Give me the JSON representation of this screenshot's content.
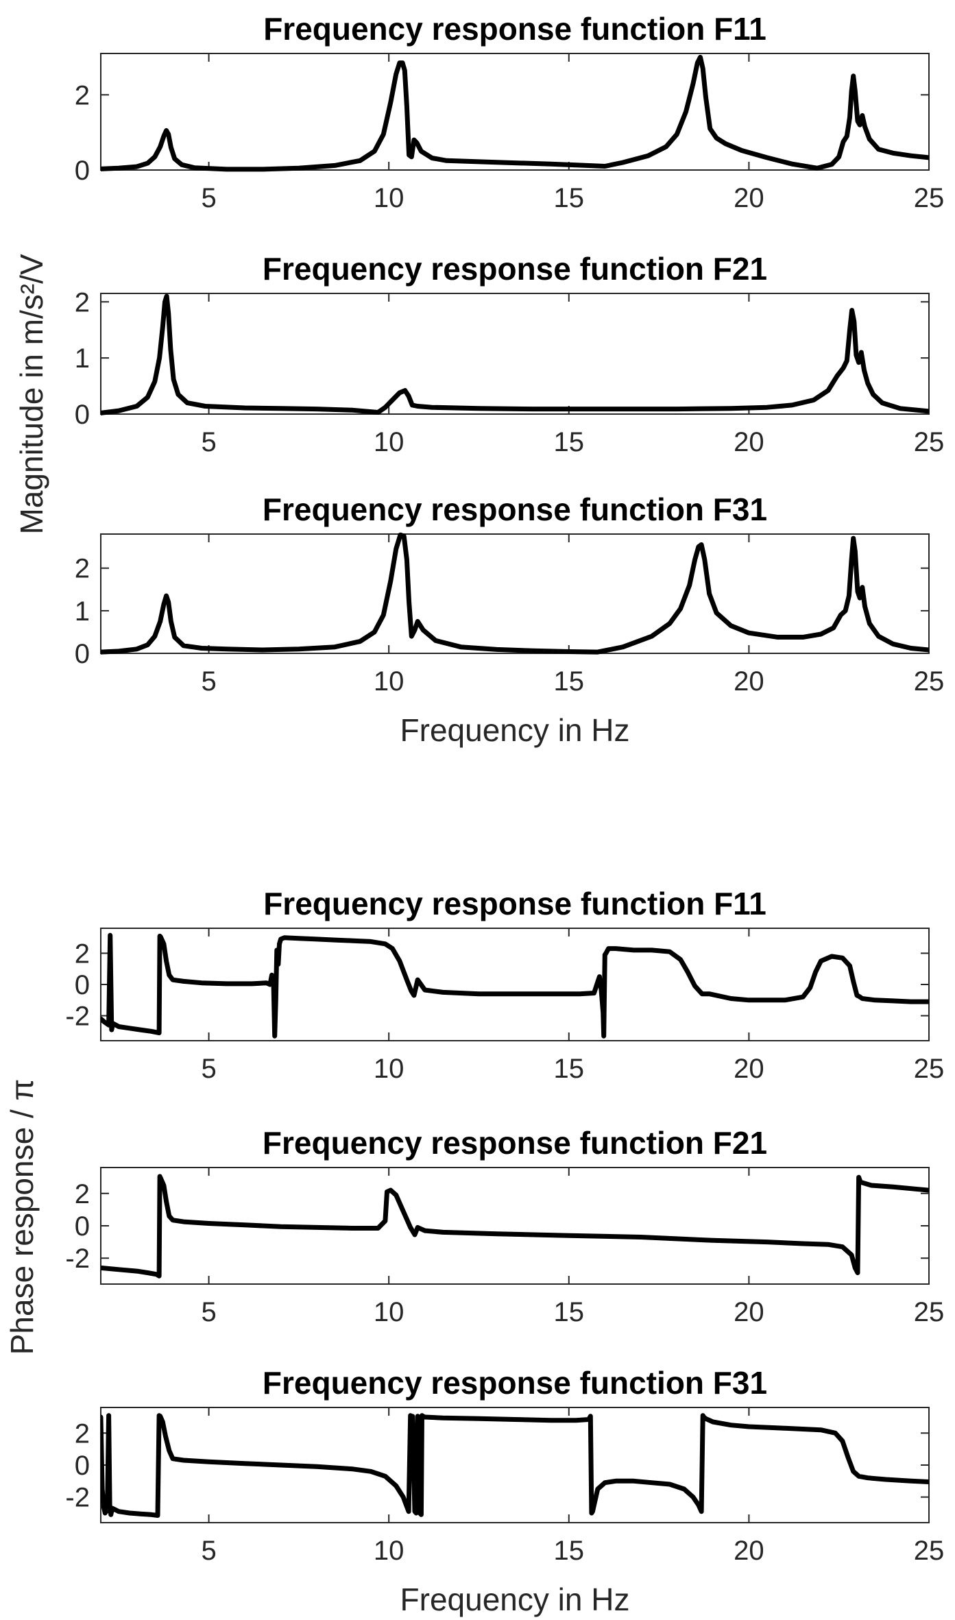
{
  "figure": {
    "magnitude_ylabel": "Magnitude in m/s²/V",
    "phase_ylabel": "Phase response / π",
    "xlabel": "Frequency in Hz"
  },
  "chart_data": [
    {
      "type": "line",
      "title": "Frequency response function F11",
      "xlabel": "",
      "ylabel": "Magnitude in m/s²/V",
      "xlim": [
        2,
        25
      ],
      "ylim": [
        0,
        3.1
      ],
      "xticks": [
        5,
        10,
        15,
        20,
        25
      ],
      "yticks": [
        0,
        2
      ],
      "x": [
        2,
        2.5,
        3,
        3.3,
        3.5,
        3.65,
        3.75,
        3.82,
        3.88,
        3.95,
        4.05,
        4.25,
        4.6,
        5.5,
        6.5,
        7.5,
        8.5,
        9.2,
        9.6,
        9.85,
        10.05,
        10.2,
        10.3,
        10.38,
        10.44,
        10.5,
        10.56,
        10.63,
        10.7,
        10.78,
        10.9,
        11.2,
        11.6,
        12.5,
        13.5,
        14.5,
        15.5,
        16,
        16.5,
        17.2,
        17.7,
        18,
        18.25,
        18.45,
        18.57,
        18.65,
        18.72,
        18.8,
        18.92,
        19.1,
        19.35,
        19.8,
        20.5,
        21.2,
        21.9,
        22.3,
        22.5,
        22.62,
        22.72,
        22.8,
        22.85,
        22.9,
        22.95,
        23.02,
        23.08,
        23.15,
        23.22,
        23.35,
        23.6,
        24,
        24.5,
        25
      ],
      "y": [
        0.03,
        0.05,
        0.09,
        0.18,
        0.35,
        0.62,
        0.9,
        1.05,
        0.95,
        0.6,
        0.3,
        0.14,
        0.06,
        0.02,
        0.02,
        0.05,
        0.12,
        0.25,
        0.5,
        0.95,
        1.8,
        2.55,
        2.85,
        2.85,
        2.65,
        1.7,
        0.4,
        0.35,
        0.8,
        0.72,
        0.5,
        0.32,
        0.25,
        0.22,
        0.19,
        0.16,
        0.12,
        0.1,
        0.2,
        0.38,
        0.62,
        0.95,
        1.55,
        2.3,
        2.85,
        3.0,
        2.7,
        1.95,
        1.1,
        0.85,
        0.7,
        0.52,
        0.33,
        0.16,
        0.05,
        0.15,
        0.35,
        0.75,
        0.9,
        1.4,
        2.1,
        2.5,
        2.1,
        1.3,
        1.2,
        1.45,
        1.15,
        0.82,
        0.55,
        0.45,
        0.38,
        0.33
      ]
    },
    {
      "type": "line",
      "title": "Frequency response function F21",
      "xlabel": "",
      "ylabel": "Magnitude in m/s²/V",
      "xlim": [
        2,
        25
      ],
      "ylim": [
        0,
        2.15
      ],
      "xticks": [
        5,
        10,
        15,
        20,
        25
      ],
      "yticks": [
        0,
        1,
        2
      ],
      "x": [
        2,
        2.5,
        3,
        3.3,
        3.5,
        3.63,
        3.72,
        3.78,
        3.83,
        3.88,
        3.94,
        4.02,
        4.15,
        4.4,
        4.9,
        6,
        7,
        8,
        9,
        9.7,
        9.9,
        10.1,
        10.3,
        10.45,
        10.55,
        10.65,
        10.8,
        11.2,
        12.5,
        14,
        16,
        18,
        19.5,
        20.5,
        21.2,
        21.8,
        22.2,
        22.45,
        22.62,
        22.72,
        22.8,
        22.86,
        22.92,
        22.98,
        23.05,
        23.12,
        23.2,
        23.3,
        23.45,
        23.7,
        24.2,
        25
      ],
      "y": [
        0.02,
        0.06,
        0.14,
        0.3,
        0.58,
        1.0,
        1.55,
        2.0,
        2.1,
        1.8,
        1.15,
        0.62,
        0.35,
        0.2,
        0.14,
        0.11,
        0.1,
        0.09,
        0.07,
        0.03,
        0.12,
        0.25,
        0.38,
        0.42,
        0.32,
        0.16,
        0.14,
        0.12,
        0.1,
        0.09,
        0.09,
        0.09,
        0.1,
        0.12,
        0.16,
        0.25,
        0.42,
        0.68,
        0.82,
        0.95,
        1.5,
        1.85,
        1.65,
        1.05,
        0.92,
        1.1,
        0.78,
        0.55,
        0.35,
        0.2,
        0.1,
        0.05
      ]
    },
    {
      "type": "line",
      "title": "Frequency response function F31",
      "xlabel": "Frequency in Hz",
      "ylabel": "Magnitude in m/s²/V",
      "xlim": [
        2,
        25
      ],
      "ylim": [
        0,
        2.8
      ],
      "xticks": [
        5,
        10,
        15,
        20,
        25
      ],
      "yticks": [
        0,
        1,
        2
      ],
      "x": [
        2,
        2.5,
        3,
        3.3,
        3.5,
        3.65,
        3.75,
        3.82,
        3.88,
        3.95,
        4.05,
        4.3,
        4.8,
        5.5,
        6.5,
        7.5,
        8.5,
        9.2,
        9.6,
        9.85,
        10.05,
        10.2,
        10.32,
        10.42,
        10.5,
        10.56,
        10.63,
        10.72,
        10.8,
        10.95,
        11.3,
        12,
        13,
        14,
        15,
        15.8,
        16.5,
        17.3,
        17.8,
        18.1,
        18.35,
        18.5,
        18.6,
        18.68,
        18.77,
        18.9,
        19.1,
        19.5,
        20,
        20.8,
        21.5,
        22,
        22.35,
        22.55,
        22.68,
        22.78,
        22.85,
        22.9,
        22.95,
        23.02,
        23.08,
        23.15,
        23.22,
        23.35,
        23.6,
        24,
        24.5,
        25
      ],
      "y": [
        0.03,
        0.05,
        0.1,
        0.2,
        0.4,
        0.75,
        1.15,
        1.35,
        1.2,
        0.75,
        0.38,
        0.18,
        0.12,
        0.1,
        0.08,
        0.1,
        0.15,
        0.28,
        0.5,
        0.9,
        1.7,
        2.45,
        2.78,
        2.75,
        2.2,
        1.2,
        0.4,
        0.55,
        0.75,
        0.55,
        0.3,
        0.15,
        0.09,
        0.06,
        0.04,
        0.03,
        0.15,
        0.4,
        0.7,
        1.05,
        1.6,
        2.2,
        2.5,
        2.55,
        2.2,
        1.4,
        0.95,
        0.65,
        0.48,
        0.38,
        0.38,
        0.45,
        0.6,
        0.9,
        1.0,
        1.35,
        2.2,
        2.7,
        2.4,
        1.45,
        1.3,
        1.55,
        1.1,
        0.7,
        0.4,
        0.22,
        0.12,
        0.08
      ]
    },
    {
      "type": "line",
      "title": "Frequency response function F11",
      "xlabel": "",
      "ylabel": "Phase response / π",
      "xlim": [
        2,
        25
      ],
      "ylim": [
        -3.6,
        3.6
      ],
      "xticks": [
        5,
        10,
        15,
        20,
        25
      ],
      "yticks": [
        -2,
        0,
        2
      ],
      "x": [
        2,
        2.1,
        2.22,
        2.26,
        2.3,
        2.34,
        2.5,
        2.8,
        3.1,
        3.4,
        3.62,
        3.64,
        3.66,
        3.75,
        3.82,
        3.9,
        4,
        4.3,
        4.8,
        5.5,
        6.2,
        6.6,
        6.7,
        6.75,
        6.8,
        6.83,
        6.86,
        6.89,
        6.93,
        6.96,
        7,
        7.1,
        7.5,
        8,
        8.5,
        9,
        9.5,
        9.9,
        10.1,
        10.3,
        10.5,
        10.62,
        10.7,
        10.8,
        11,
        11.5,
        12.5,
        13.5,
        14.5,
        15.3,
        15.7,
        15.85,
        15.9,
        15.95,
        15.97,
        16,
        16.03,
        16.1,
        16.3,
        16.8,
        17.3,
        17.8,
        18.1,
        18.3,
        18.5,
        18.7,
        18.9,
        19.5,
        20,
        20.5,
        21,
        21.5,
        21.7,
        21.85,
        22,
        22.3,
        22.6,
        22.8,
        22.9,
        23,
        23.05,
        23.15,
        23.5,
        24,
        24.5,
        25
      ],
      "y": [
        -2.2,
        -2.4,
        -2.6,
        3.15,
        -2.9,
        -2.5,
        -2.7,
        -2.8,
        -2.9,
        -3.0,
        -3.1,
        3.1,
        3.05,
        2.6,
        1.5,
        0.6,
        0.3,
        0.2,
        0.1,
        0.05,
        0.05,
        0.1,
        0.0,
        0.6,
        -0.1,
        -3.3,
        -1.0,
        2.2,
        1.3,
        2.6,
        2.9,
        3.0,
        2.95,
        2.9,
        2.85,
        2.8,
        2.75,
        2.6,
        2.3,
        1.5,
        0.3,
        -0.4,
        -0.7,
        0.3,
        -0.35,
        -0.5,
        -0.6,
        -0.6,
        -0.6,
        -0.6,
        -0.55,
        0.5,
        -0.4,
        -1.8,
        -3.3,
        1.9,
        2.0,
        2.3,
        2.3,
        2.2,
        2.2,
        2.1,
        1.6,
        0.8,
        -0.1,
        -0.6,
        -0.6,
        -0.9,
        -1.0,
        -1.0,
        -1.0,
        -0.8,
        -0.2,
        0.8,
        1.5,
        1.8,
        1.7,
        1.2,
        0.2,
        -0.7,
        -0.75,
        -0.9,
        -1.0,
        -1.05,
        -1.1,
        -1.1
      ]
    },
    {
      "type": "line",
      "title": "Frequency response function F21",
      "xlabel": "",
      "ylabel": "Phase response / π",
      "xlim": [
        2,
        25
      ],
      "ylim": [
        -3.6,
        3.6
      ],
      "xticks": [
        5,
        10,
        15,
        20,
        25
      ],
      "yticks": [
        -2,
        0,
        2
      ],
      "x": [
        2,
        2.5,
        3,
        3.3,
        3.55,
        3.62,
        3.64,
        3.67,
        3.75,
        3.82,
        3.9,
        4,
        4.3,
        5,
        6,
        7,
        8,
        9,
        9.7,
        9.9,
        9.95,
        10.05,
        10.2,
        10.4,
        10.6,
        10.72,
        10.8,
        11,
        11.5,
        13,
        15,
        17,
        19,
        20.5,
        21.5,
        22.2,
        22.6,
        22.85,
        22.95,
        23.02,
        23.05,
        23.1,
        23.4,
        24,
        24.5,
        25
      ],
      "y": [
        -2.6,
        -2.7,
        -2.8,
        -2.9,
        -3.0,
        -3.1,
        3.05,
        2.9,
        2.5,
        1.5,
        0.6,
        0.35,
        0.25,
        0.15,
        0.05,
        -0.05,
        -0.1,
        -0.15,
        -0.15,
        0.3,
        2.1,
        2.2,
        1.9,
        0.9,
        -0.1,
        -0.55,
        -0.1,
        -0.3,
        -0.4,
        -0.5,
        -0.6,
        -0.7,
        -0.9,
        -1.0,
        -1.1,
        -1.15,
        -1.3,
        -1.8,
        -2.6,
        -2.9,
        3.0,
        2.7,
        2.5,
        2.4,
        2.3,
        2.2
      ]
    },
    {
      "type": "line",
      "title": "Frequency response function F31",
      "xlabel": "Frequency in Hz",
      "ylabel": "Phase response / π",
      "xlim": [
        2,
        25
      ],
      "ylim": [
        -3.6,
        3.6
      ],
      "xticks": [
        5,
        10,
        15,
        20,
        25
      ],
      "yticks": [
        -2,
        0,
        2
      ],
      "x": [
        2,
        2.04,
        2.08,
        2.12,
        2.18,
        2.22,
        2.25,
        2.28,
        2.32,
        2.5,
        2.8,
        3.1,
        3.4,
        3.58,
        3.62,
        3.65,
        3.72,
        3.8,
        3.9,
        4,
        4.3,
        5,
        6,
        7,
        8,
        9,
        9.5,
        9.9,
        10.2,
        10.4,
        10.5,
        10.55,
        10.6,
        10.63,
        10.66,
        10.72,
        10.76,
        10.8,
        10.83,
        10.86,
        10.9,
        10.92,
        10.95,
        11,
        11.5,
        12.5,
        13.5,
        14.5,
        15.2,
        15.55,
        15.6,
        15.63,
        15.66,
        15.7,
        15.8,
        16,
        16.3,
        16.8,
        17.3,
        17.8,
        18.2,
        18.45,
        18.6,
        18.68,
        18.72,
        18.75,
        18.8,
        19,
        19.5,
        20,
        21,
        22,
        22.4,
        22.6,
        22.75,
        22.9,
        23.05,
        23.3,
        23.8,
        24.5,
        25
      ],
      "y": [
        3.0,
        -1.5,
        -2.6,
        -3.0,
        -2.8,
        3.1,
        -2.5,
        -3.1,
        -2.7,
        -2.9,
        -3.0,
        -3.05,
        -3.1,
        -3.15,
        3.1,
        3.05,
        2.7,
        1.8,
        0.9,
        0.4,
        0.3,
        0.2,
        0.1,
        0.0,
        -0.1,
        -0.25,
        -0.4,
        -0.7,
        -1.3,
        -2.0,
        -2.6,
        -2.9,
        3.1,
        3.0,
        3.05,
        -2.9,
        -3.0,
        3.05,
        3.0,
        -3.0,
        -3.1,
        3.1,
        3.05,
        3.0,
        2.95,
        2.9,
        2.85,
        2.8,
        2.8,
        2.85,
        3.05,
        -3.0,
        -2.9,
        -2.5,
        -1.5,
        -1.1,
        -1.0,
        -1.0,
        -1.1,
        -1.2,
        -1.5,
        -2.0,
        -2.5,
        -2.9,
        3.1,
        3.0,
        2.9,
        2.7,
        2.5,
        2.4,
        2.3,
        2.2,
        2.0,
        1.5,
        0.5,
        -0.4,
        -0.7,
        -0.8,
        -0.9,
        -1.0,
        -1.05
      ]
    }
  ]
}
